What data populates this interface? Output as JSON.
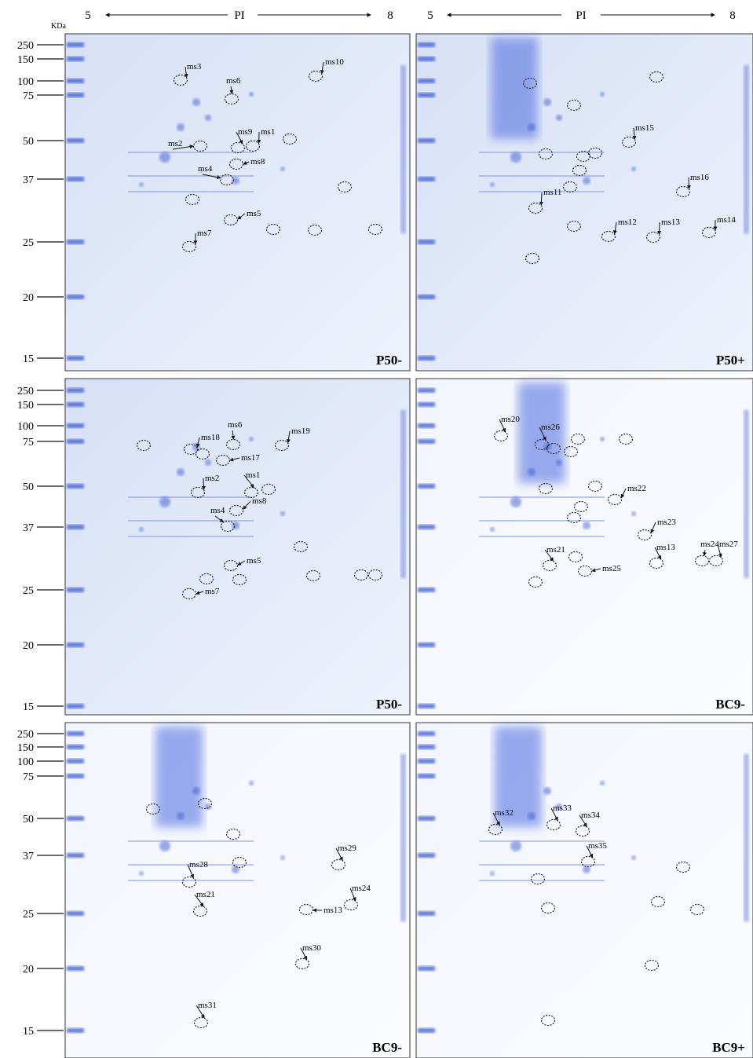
{
  "header": [
    {
      "low": "5",
      "label": "PI",
      "high": "8"
    },
    {
      "low": "5",
      "label": "PI",
      "high": "8"
    }
  ],
  "unit": "KDa",
  "rows": [
    {
      "markers": [
        "250",
        "150",
        "100",
        "75",
        "50",
        "37",
        "25",
        "20",
        "15"
      ],
      "panels": [
        {
          "label": "P50-",
          "spots": [
            "ms3",
            "ms10",
            "ms6",
            "ms9",
            "ms1",
            "ms2",
            "ms8",
            "ms4",
            "ms5",
            "ms7"
          ]
        },
        {
          "label": "P50+",
          "spots": [
            "ms15",
            "ms11",
            "ms16",
            "ms12",
            "ms13",
            "ms14"
          ]
        }
      ]
    },
    {
      "markers": [
        "250",
        "150",
        "100",
        "75",
        "50",
        "37",
        "25",
        "20",
        "15"
      ],
      "panels": [
        {
          "label": "P50-",
          "spots": [
            "ms6",
            "ms18",
            "ms19",
            "ms17",
            "ms2",
            "ms1",
            "ms8",
            "ms4",
            "ms5",
            "ms7"
          ]
        },
        {
          "label": "BC9-",
          "spots": [
            "ms20",
            "ms26",
            "ms22",
            "ms23",
            "ms21",
            "ms25",
            "ms13",
            "ms24",
            "ms27"
          ]
        }
      ]
    },
    {
      "markers": [
        "250",
        "150",
        "100",
        "75",
        "50",
        "37",
        "25",
        "20",
        "15"
      ],
      "panels": [
        {
          "label": "BC9-",
          "spots": [
            "ms29",
            "ms28",
            "ms21",
            "ms24",
            "ms13",
            "ms30",
            "ms31"
          ]
        },
        {
          "label": "BC9+",
          "spots": [
            "ms32",
            "ms33",
            "ms34",
            "ms35"
          ]
        }
      ]
    }
  ]
}
